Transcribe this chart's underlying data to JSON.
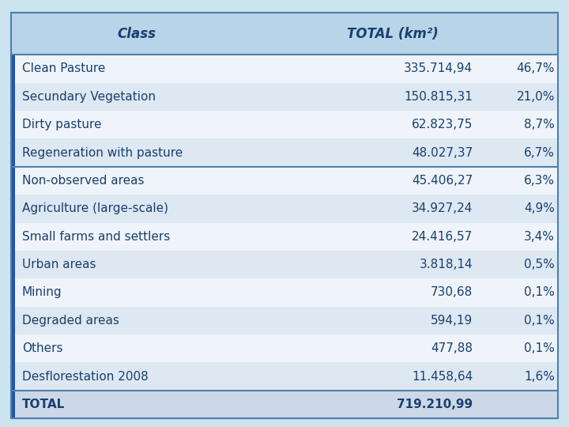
{
  "header": [
    "Class",
    "TOTAL (km²)",
    ""
  ],
  "rows": [
    [
      "Clean Pasture",
      "335.714,94",
      "46,7%"
    ],
    [
      "Secundary Vegetation",
      "150.815,31",
      "21,0%"
    ],
    [
      "Dirty pasture",
      "62.823,75",
      "8,7%"
    ],
    [
      "Regeneration with pasture",
      "48.027,37",
      "6,7%"
    ],
    [
      "Non-observed areas",
      "45.406,27",
      "6,3%"
    ],
    [
      "Agriculture (large-scale)",
      "34.927,24",
      "4,9%"
    ],
    [
      "Small farms and settlers",
      "24.416,57",
      "3,4%"
    ],
    [
      "Urban areas",
      "3.818,14",
      "0,5%"
    ],
    [
      "Mining",
      "730,68",
      "0,1%"
    ],
    [
      "Degraded areas",
      "594,19",
      "0,1%"
    ],
    [
      "Others",
      "477,88",
      "0,1%"
    ],
    [
      "Desflorestation 2008",
      "11.458,64",
      "1,6%"
    ],
    [
      "TOTAL",
      "719.210,99",
      ""
    ]
  ],
  "fig_bg": "#cce4f0",
  "header_bg": "#b8d4e8",
  "row_bg_odd": "#dde8f2",
  "row_bg_even": "#eef4f9",
  "total_row_bg": "#ccd8e8",
  "border_color": "#6a9cbf",
  "thick_border_color": "#5080aa",
  "header_text_color": "#1a3f6f",
  "row_text_color": "#1a3f6f",
  "total_text_color": "#1a3f6f",
  "left_bar_color": "#2255aa",
  "header_fontsize": 12,
  "row_fontsize": 11,
  "figsize": [
    7.2,
    5.4
  ],
  "dpi": 100
}
